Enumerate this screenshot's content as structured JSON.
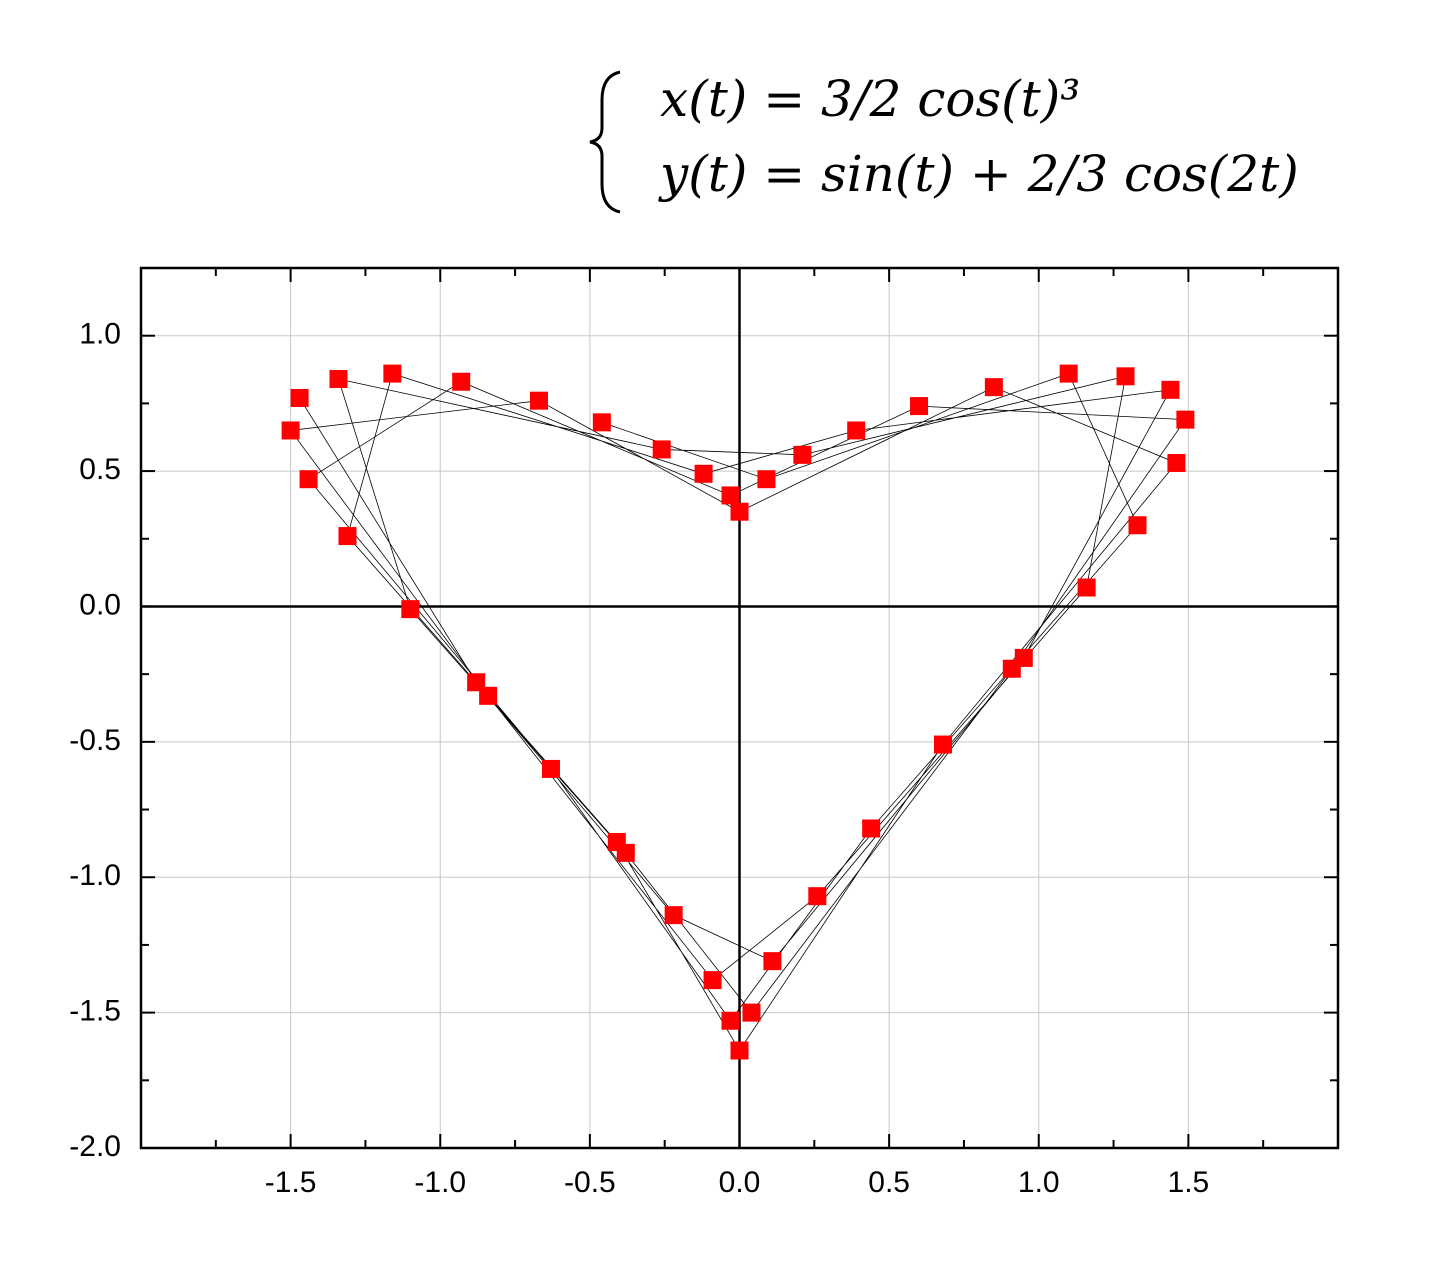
{
  "chart_data": {
    "type": "scatter-line",
    "equations": [
      "x(t) = 3/2 cos(t)³",
      "y(t) = sin(t) + 2/3 cos(2t)"
    ],
    "series": [
      {
        "color": "#ff0000",
        "line_color": "#000000",
        "x": [
          -1.47,
          -0.88,
          -0.22,
          0.11,
          0.95,
          1.44,
          0.39,
          -0.12,
          -1.16,
          -1.31,
          -0.41,
          0.0,
          0.68,
          1.46,
          0.85,
          0.0,
          -0.67,
          -1.5,
          -0.84,
          -0.09,
          0.26,
          1.16,
          1.29,
          0.21,
          -0.26,
          -1.34,
          -1.1,
          -0.38,
          0.04,
          0.91,
          1.49,
          0.6,
          -0.03,
          -0.93,
          -1.44,
          -0.63,
          -0.03,
          0.44,
          1.33,
          1.1,
          0.09,
          -0.46
        ],
        "values": [
          0.77,
          -0.28,
          -1.14,
          -1.31,
          -0.19,
          0.8,
          0.65,
          0.49,
          0.86,
          0.26,
          -0.87,
          -1.64,
          -0.51,
          0.53,
          0.81,
          0.35,
          0.76,
          0.65,
          -0.33,
          -1.38,
          -1.07,
          0.07,
          0.85,
          0.56,
          0.58,
          0.84,
          -0.01,
          -0.91,
          -1.5,
          -0.23,
          0.69,
          0.74,
          0.41,
          0.83,
          0.47,
          -0.6,
          -1.53,
          -0.82,
          0.3,
          0.86,
          0.47,
          0.68
        ]
      }
    ],
    "xlim": [
      -2,
      2
    ],
    "ylim": [
      -2,
      1.25
    ],
    "xticks": [
      {
        "value": -1.5,
        "label": "-1.5"
      },
      {
        "value": -1,
        "label": "-1.0"
      },
      -0.5,
      {
        "value": 0,
        "label": "0.0"
      },
      0.5,
      {
        "value": 1,
        "label": "1.0"
      },
      1.5
    ],
    "yticks": [
      {
        "value": -2,
        "label": "-2.0"
      },
      -1.5,
      {
        "value": -1,
        "label": "-1.0"
      },
      -0.5,
      {
        "value": 0,
        "label": "0.0"
      },
      0.5,
      {
        "value": 1,
        "label": "1.0"
      }
    ],
    "xminorticks": [
      -1.75,
      -1.25,
      -0.75,
      -0.25,
      0.25,
      0.75,
      1.25,
      1.75
    ],
    "yminorticks": [
      -1.75,
      -1.25,
      -0.75,
      -0.25,
      0.25,
      0.75
    ],
    "grid": true,
    "zero_lines": true
  }
}
